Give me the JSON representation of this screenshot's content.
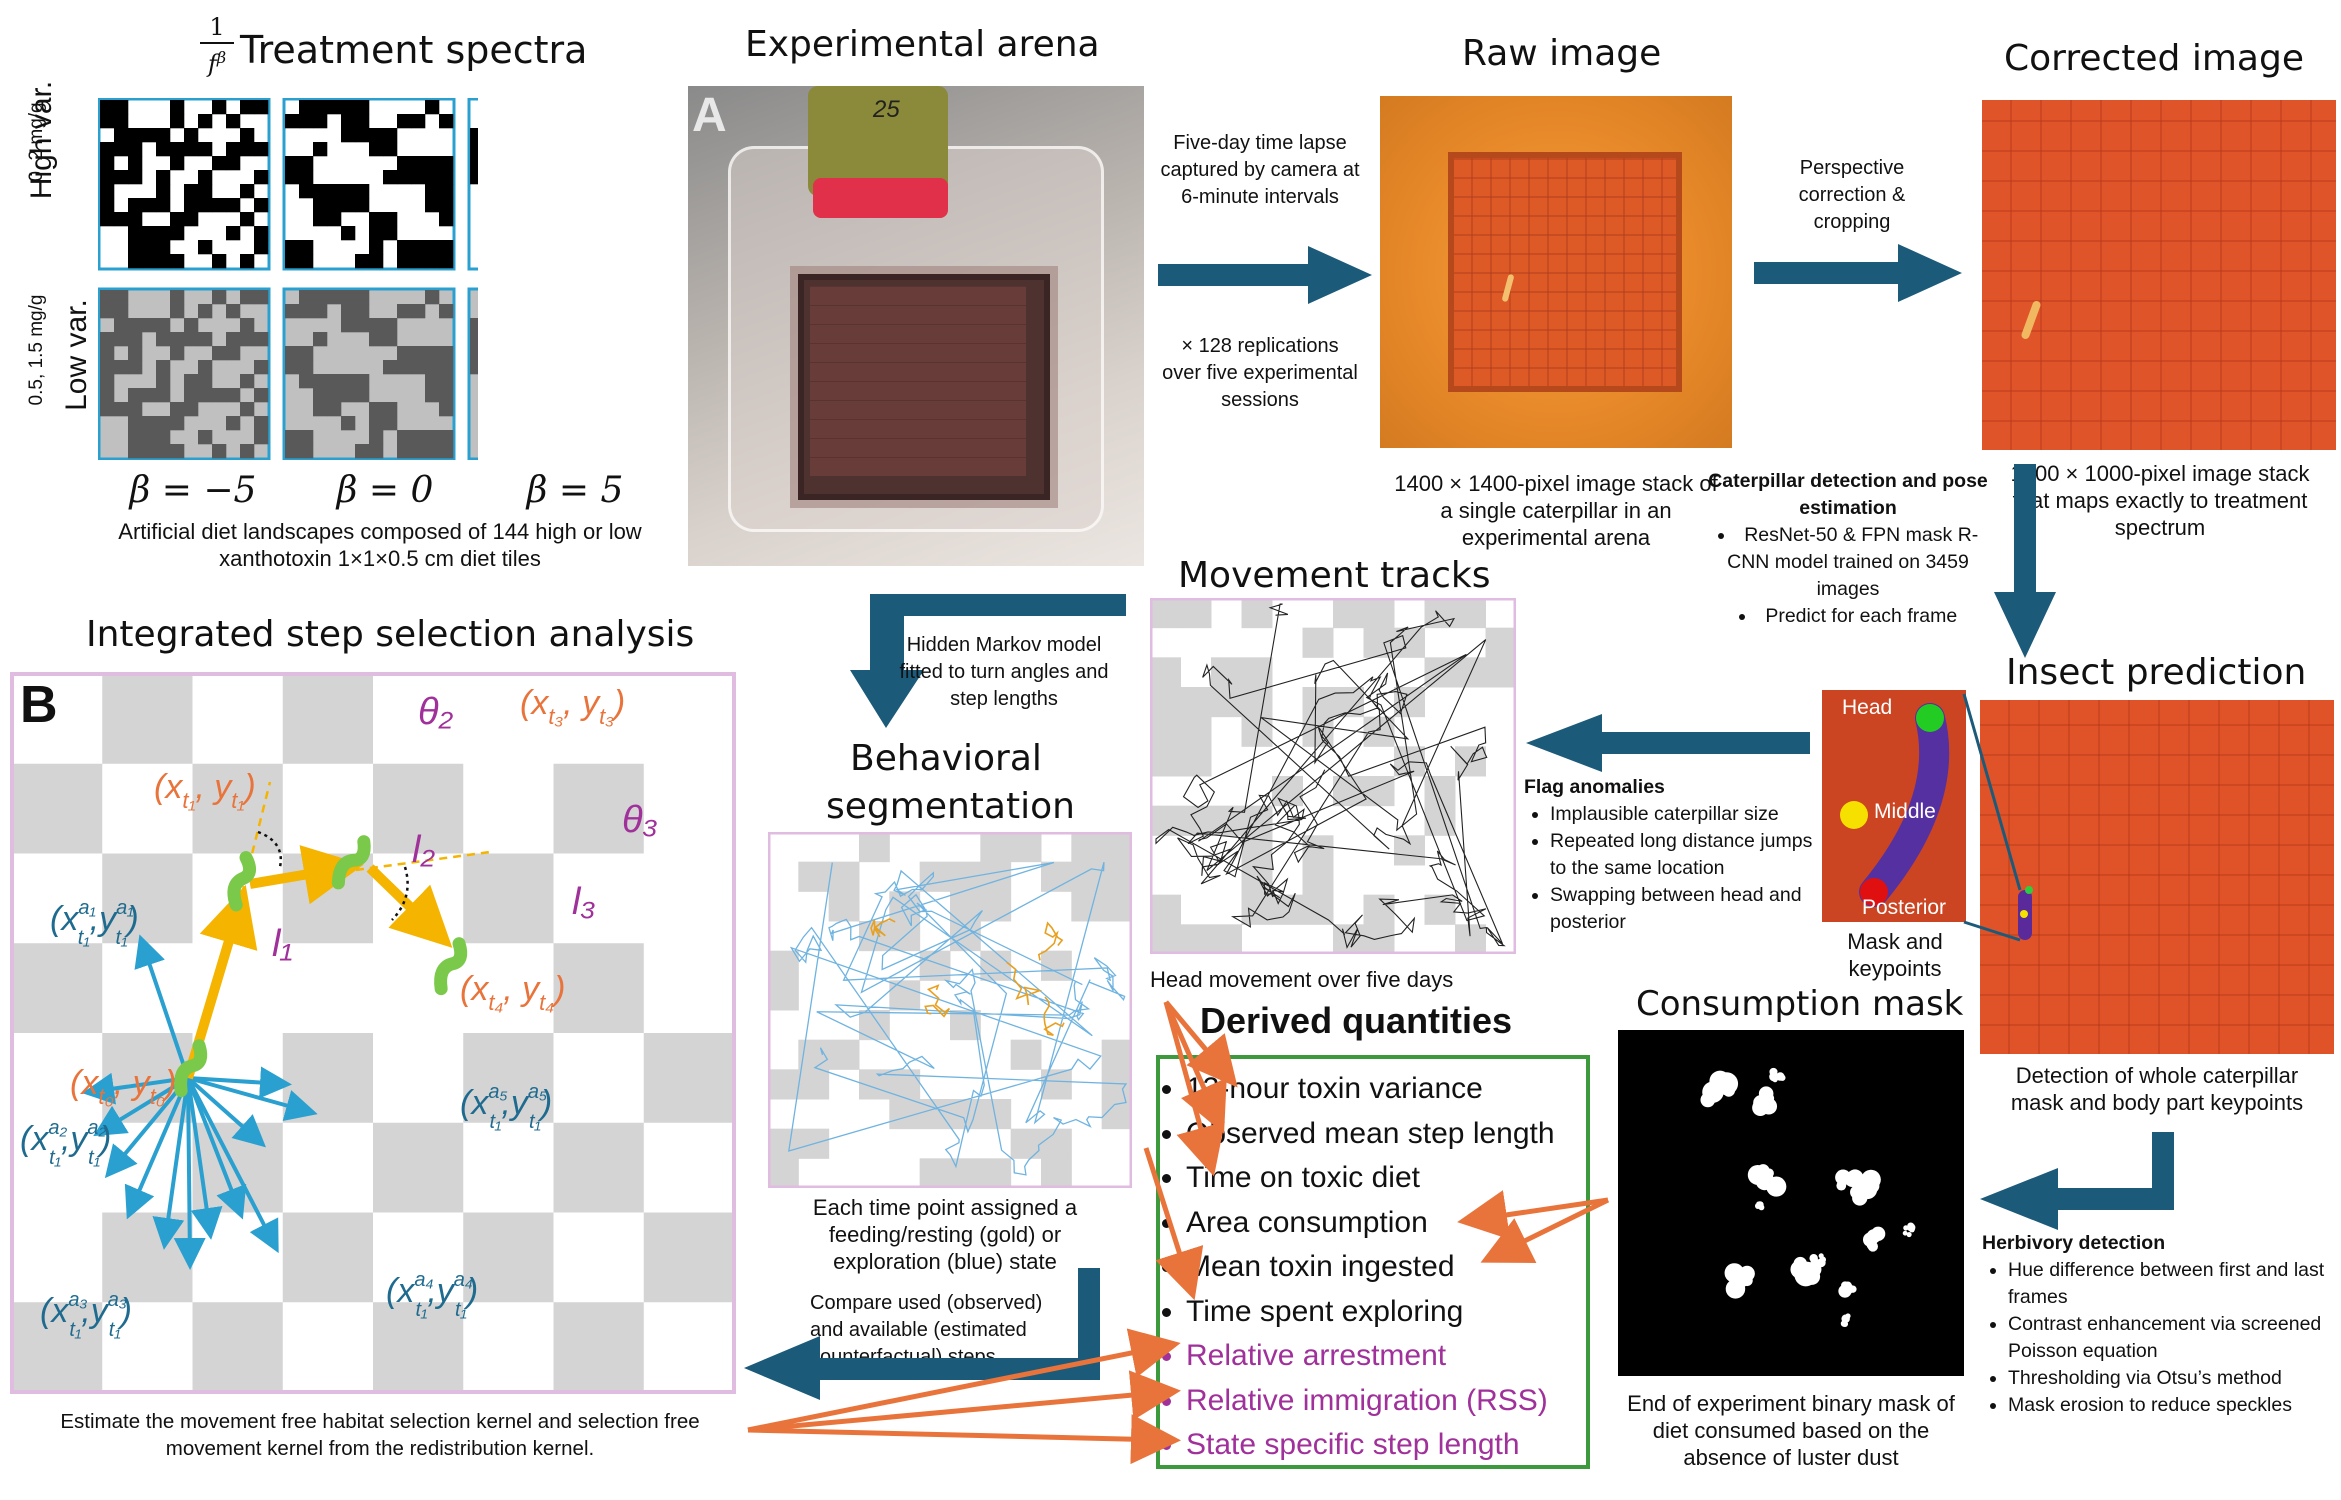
{
  "treatment": {
    "title": "Treatment spectra",
    "formula_num": "1",
    "formula_den": "f",
    "formula_exp": "β",
    "row_high_label": "High var.",
    "row_high_dose": "0, 2 mg/g",
    "row_low_label": "Low var.",
    "row_low_dose": "0.5, 1.5 mg/g",
    "betas": [
      "β = −5",
      "β = 0",
      "β = 5"
    ],
    "caption": "Artificial diet landscapes composed of 144 high or low xanthotoxin 1×1×0.5 cm diet tiles"
  },
  "arena": {
    "title": "Experimental arena",
    "panel_letter": "A",
    "jar_label": "25"
  },
  "raw_image": {
    "title": "Raw image",
    "caption": "1400 × 1400-pixel image stack of a single caterpillar in an experimental arena"
  },
  "corrected_image": {
    "title": "Corrected image",
    "caption": "1000 × 1000-pixel image stack that maps exactly to treatment spectrum"
  },
  "arrows": {
    "timelapse": "Five-day time lapse captured by camera at 6-minute intervals",
    "replications": "× 128 replications over five experimental sessions",
    "perspective": "Perspective correction & cropping",
    "hmm": "Hidden Markov model fitted to turn angles and step lengths"
  },
  "caterpillar_detection": {
    "heading": "Caterpillar detection and pose estimation",
    "items": [
      "ResNet-50 & FPN mask R-CNN model trained on 3459 images",
      "Predict for each frame"
    ]
  },
  "insect_prediction": {
    "title": "Insect prediction",
    "keypoints": [
      "Head",
      "Middle",
      "Posterior"
    ],
    "mask_caption": "Mask and keypoints",
    "caption": "Detection of whole caterpillar mask and body part keypoints"
  },
  "flag_anomalies": {
    "heading": "Flag anomalies",
    "items": [
      "Implausible caterpillar size",
      "Repeated long distance jumps to the same location",
      "Swapping between head and posterior"
    ]
  },
  "movement_tracks": {
    "title": "Movement tracks",
    "caption": "Head movement over five days"
  },
  "behavioral": {
    "title_line1": "Behavioral",
    "title_line2": "segmentation",
    "caption": "Each time point assigned a feeding/resting (gold) or exploration (blue) state",
    "compare": "Compare used (observed) and available (estimated counterfactual) steps"
  },
  "issa": {
    "title": "Integrated step selection analysis",
    "panel_letter": "B",
    "caption": "Estimate the movement free habitat selection kernel and selection free movement kernel from the redistribution kernel."
  },
  "consumption": {
    "title": "Consumption mask",
    "caption": "End of experiment binary mask of diet consumed based on the absence of luster dust"
  },
  "herbivory": {
    "heading": "Herbivory detection",
    "items": [
      "Hue difference between first and last frames",
      "Contrast enhancement via screened Poisson equation",
      "Thresholding via Otsu’s method",
      "Mask erosion to reduce speckles"
    ]
  },
  "derived": {
    "title": "Derived quantities",
    "items": [
      "12-hour toxin variance",
      "Observed mean step length",
      "Time on toxic diet",
      "Area consumption",
      "Mean toxin ingested",
      "Time spent exploring"
    ],
    "purple_items": [
      "Relative arrestment",
      "Relative immigration (RSS)",
      "State specific step length"
    ]
  },
  "colors": {
    "arrow_blue": "#1c5a7a",
    "orange": "#e8743b",
    "purple": "#a0309a",
    "gold": "#f5b400",
    "green_box": "#3c9a3c",
    "pink_box": "#e8c4e8",
    "tile_border": "#29a0d0",
    "math_blue": "#1f6b8f",
    "math_orange": "#e8743b"
  }
}
